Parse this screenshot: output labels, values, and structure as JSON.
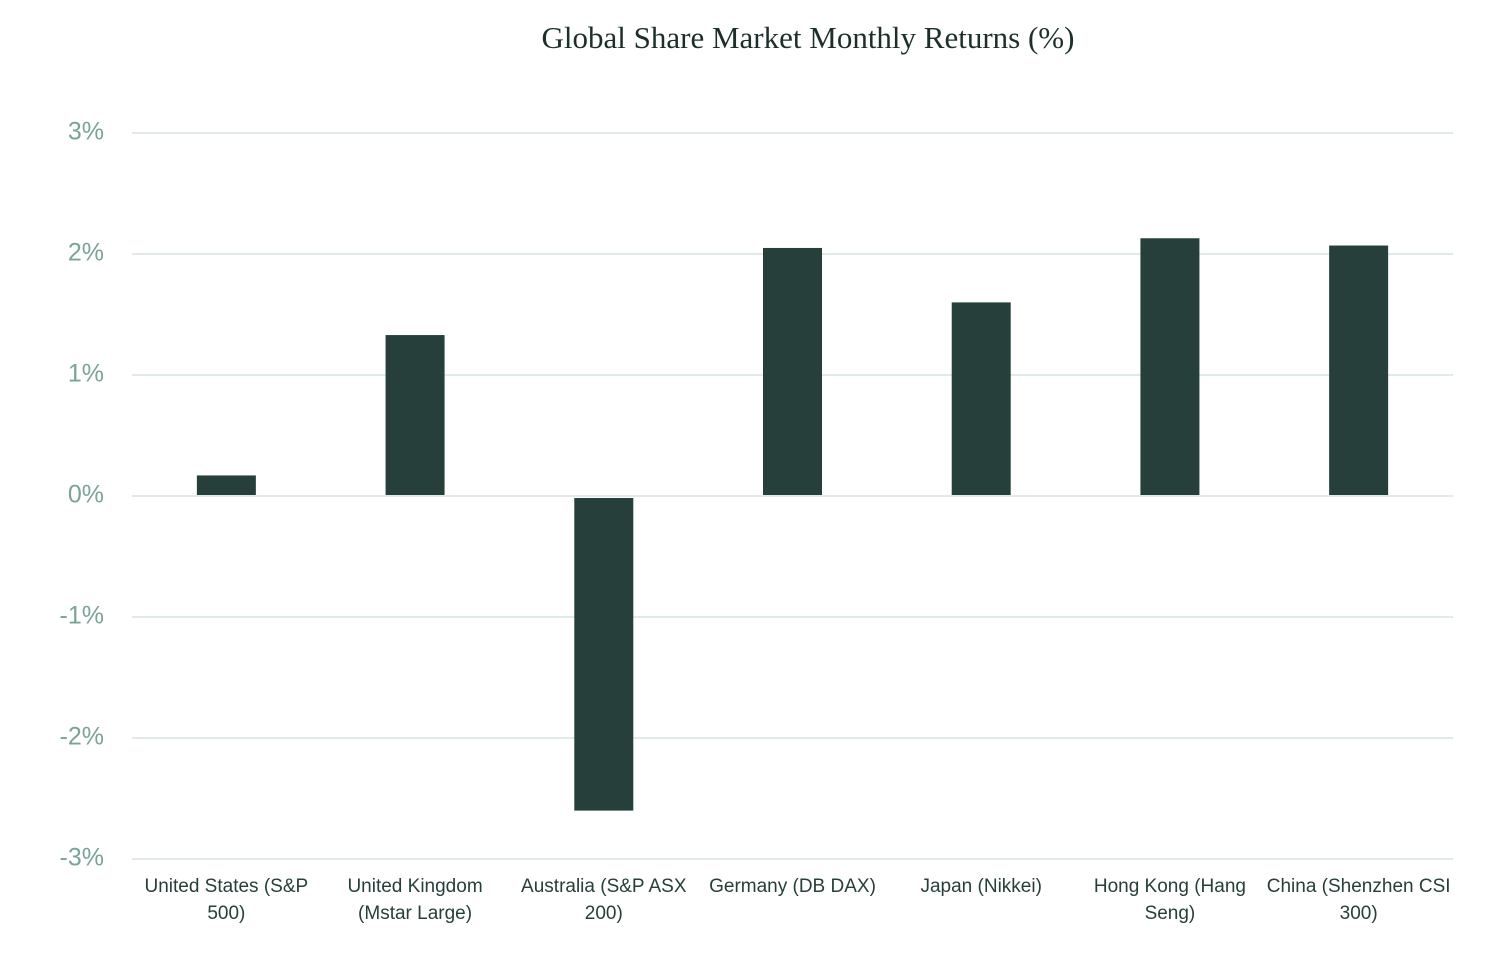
{
  "chart_data": {
    "type": "bar",
    "title": "Global Share Market Monthly Returns (%)",
    "categories": [
      "United States (S&P 500)",
      "United Kingdom (Mstar Large)",
      "Australia (S&P ASX 200)",
      "Germany (DB DAX)",
      "Japan (Nikkei)",
      "Hong Kong (Hang Seng)",
      "China (Shenzhen CSI 300)"
    ],
    "values": [
      0.17,
      1.33,
      -2.6,
      2.05,
      1.6,
      2.13,
      2.07
    ],
    "color": "#263f3a",
    "ylim": [
      -3,
      3
    ],
    "yticks": [
      {
        "value": -3,
        "label": "-3%"
      },
      {
        "value": -2,
        "label": "-2%"
      },
      {
        "value": -1,
        "label": "-1%"
      },
      {
        "value": 0,
        "label": "0%"
      },
      {
        "value": 1,
        "label": "1%"
      },
      {
        "value": 2,
        "label": "2%"
      },
      {
        "value": 3,
        "label": "3%"
      }
    ],
    "grid": true
  }
}
